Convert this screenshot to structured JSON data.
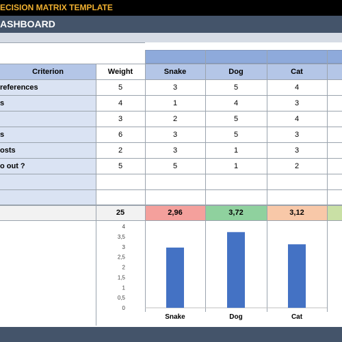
{
  "header": {
    "title": "ECISION MATRIX TEMPLATE",
    "dashboard": "ASHBOARD"
  },
  "table": {
    "col_criterion": "Criterion",
    "col_weight": "Weight",
    "options": [
      "Snake",
      "Dog",
      "Cat"
    ],
    "rows": [
      {
        "criterion": "references",
        "weight": "5",
        "scores": [
          "3",
          "5",
          "4"
        ]
      },
      {
        "criterion": "s",
        "weight": "4",
        "scores": [
          "1",
          "4",
          "3"
        ]
      },
      {
        "criterion": "",
        "weight": "3",
        "scores": [
          "2",
          "5",
          "4"
        ]
      },
      {
        "criterion": "s",
        "weight": "6",
        "scores": [
          "3",
          "5",
          "3"
        ]
      },
      {
        "criterion": "osts",
        "weight": "2",
        "scores": [
          "3",
          "1",
          "3"
        ]
      },
      {
        "criterion": "o out ?",
        "weight": "5",
        "scores": [
          "5",
          "1",
          "2"
        ]
      },
      {
        "criterion": "",
        "weight": "",
        "scores": [
          "",
          "",
          ""
        ]
      },
      {
        "criterion": "",
        "weight": "",
        "scores": [
          "",
          "",
          ""
        ]
      }
    ],
    "total_weight": "25",
    "totals": [
      "2,96",
      "3,72",
      "3,12"
    ],
    "total_colors": [
      "#f4a09c",
      "#8fd19e",
      "#f8c8a8"
    ],
    "extra_color": "#c9e0a5"
  },
  "chart_data": {
    "type": "bar",
    "categories": [
      "Snake",
      "Dog",
      "Cat"
    ],
    "values": [
      2.96,
      3.72,
      3.12
    ],
    "ylim": [
      0,
      4
    ],
    "yticks": [
      "0",
      "0,5",
      "1",
      "1,5",
      "2",
      "2,5",
      "3",
      "3,5",
      "4"
    ],
    "bar_color": "#4472c4",
    "grid": false
  }
}
